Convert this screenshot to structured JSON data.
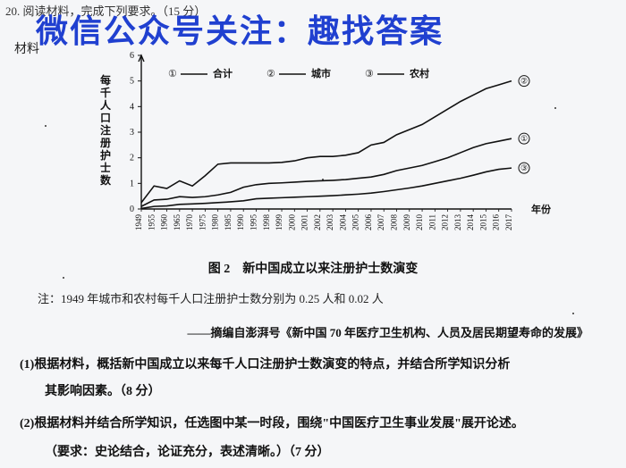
{
  "top_cut_text": "20. 阅读材料，完成下列要求。（15 分）",
  "watermark_text": "微信公众号关注：趣找答案",
  "material_label": "材料",
  "chart": {
    "type": "line",
    "y_label": "每千人口注册护士数",
    "x_label": "年份",
    "ylim": [
      0,
      6
    ],
    "ytick_step": 1,
    "x_categories": [
      "1949",
      "1955",
      "1960",
      "1965",
      "1970",
      "1975",
      "1980",
      "1985",
      "1990",
      "1995",
      "1998",
      "1999",
      "2000",
      "2001",
      "2002",
      "2003",
      "2004",
      "2005",
      "2006",
      "2007",
      "2008",
      "2009",
      "2010",
      "2011",
      "2012",
      "2013",
      "2014",
      "2015",
      "2016",
      "2017"
    ],
    "legend": [
      {
        "marker": "①",
        "label": "合计"
      },
      {
        "marker": "②",
        "label": "城市"
      },
      {
        "marker": "③",
        "label": "农村"
      }
    ],
    "end_markers": [
      "①",
      "②",
      "③"
    ],
    "series": {
      "total": {
        "color": "#111111",
        "line_width": 1.6,
        "values": [
          0.1,
          0.35,
          0.38,
          0.48,
          0.45,
          0.48,
          0.55,
          0.65,
          0.85,
          0.95,
          1.0,
          1.02,
          1.05,
          1.08,
          1.1,
          1.12,
          1.15,
          1.2,
          1.25,
          1.35,
          1.5,
          1.6,
          1.7,
          1.85,
          2.0,
          2.2,
          2.4,
          2.55,
          2.65,
          2.75
        ]
      },
      "urban": {
        "color": "#111111",
        "line_width": 1.6,
        "values": [
          0.25,
          0.9,
          0.8,
          1.1,
          0.9,
          1.3,
          1.75,
          1.8,
          1.8,
          1.8,
          1.8,
          1.82,
          1.88,
          2.0,
          2.05,
          2.05,
          2.1,
          2.2,
          2.5,
          2.6,
          2.9,
          3.1,
          3.3,
          3.6,
          3.9,
          4.2,
          4.45,
          4.7,
          4.85,
          5.0
        ]
      },
      "rural": {
        "color": "#111111",
        "line_width": 1.6,
        "values": [
          0.02,
          0.1,
          0.12,
          0.18,
          0.2,
          0.22,
          0.25,
          0.28,
          0.32,
          0.4,
          0.42,
          0.44,
          0.46,
          0.48,
          0.5,
          0.52,
          0.55,
          0.58,
          0.62,
          0.68,
          0.75,
          0.82,
          0.9,
          1.0,
          1.1,
          1.2,
          1.32,
          1.45,
          1.55,
          1.6
        ]
      }
    },
    "background_color": "#f5f6f8",
    "axis_color": "#111111",
    "text_color": "#111111",
    "label_fontsize": 11,
    "tick_fontsize": 9
  },
  "figure_caption": "图 2　新中国成立以来注册护士数演变",
  "note_text": "注：1949 年城市和农村每千人口注册护士数分别为 0.25 人和 0.02 人",
  "source_text": "——摘编自澎湃号《新中国 70 年医疗卫生机构、人员及居民期望寿命的发展》",
  "q1_text": "(1)根据材料，概括新中国成立以来每千人口注册护士数演变的特点，并结合所学知识分析",
  "q1_line2": "其影响因素。（8 分）",
  "q2_text": "(2)根据材料并结合所学知识，任选图中某一时段，围绕\"中国医疗卫生事业发展\"展开论述。",
  "q2_line2": "（要求：史论结合，论证充分，表述清晰。）（7 分）"
}
